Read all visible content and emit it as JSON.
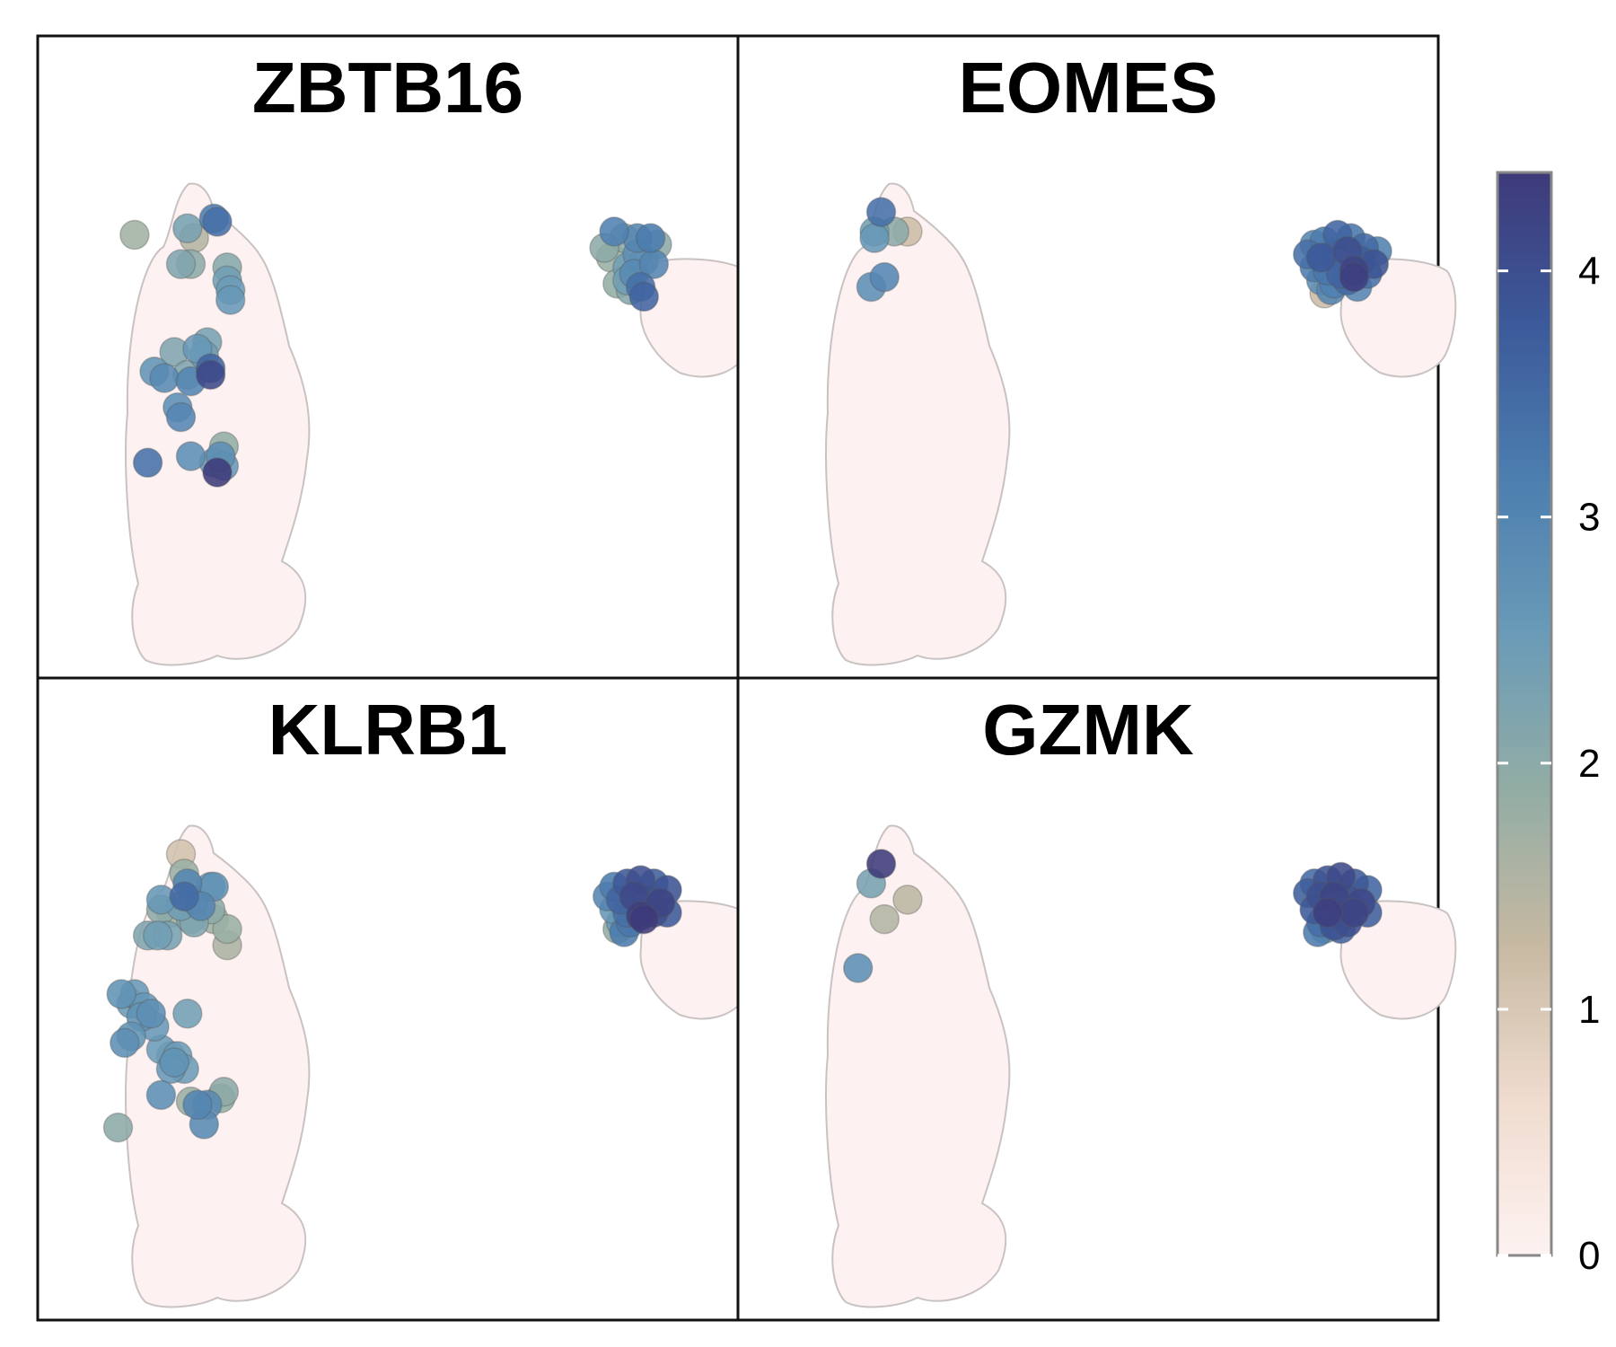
{
  "chart_data": {
    "type": "scatter",
    "description_type": "embedding feature plot, 2x2 facets",
    "grid": false,
    "legend": "right",
    "colorbar": {
      "range": [
        0,
        4.4
      ],
      "ticks": [
        0,
        1,
        2,
        3,
        4
      ],
      "tick_labels": [
        "0",
        "1",
        "2",
        "3",
        "4"
      ],
      "colors": [
        "#fdf2f1",
        "#f0dccf",
        "#c7b9a2",
        "#93ada4",
        "#6a9bb7",
        "#4d7fb0",
        "#3c5a9a",
        "#3e3a7a"
      ]
    },
    "background_color": "#fdf2f1",
    "axis_ranges": {
      "x": [
        -9,
        10
      ],
      "y": [
        -8,
        8
      ]
    },
    "panels": [
      {
        "title": "ZBTB16",
        "points": [
          {
            "x": -7.7,
            "y": 5.2,
            "v": 1.7
          },
          {
            "x": -6.1,
            "y": 5.4,
            "v": 2.3
          },
          {
            "x": -5.9,
            "y": 5.1,
            "v": 1.5
          },
          {
            "x": -5.3,
            "y": 5.7,
            "v": 3.2
          },
          {
            "x": -5.2,
            "y": 5.6,
            "v": 3.4
          },
          {
            "x": -6.3,
            "y": 4.3,
            "v": 2.2
          },
          {
            "x": -6.0,
            "y": 4.3,
            "v": 2.0
          },
          {
            "x": -4.9,
            "y": 4.2,
            "v": 2.1
          },
          {
            "x": -4.9,
            "y": 3.8,
            "v": 2.4
          },
          {
            "x": -4.8,
            "y": 3.5,
            "v": 2.5
          },
          {
            "x": -4.8,
            "y": 3.2,
            "v": 2.6
          },
          {
            "x": -6.5,
            "y": 1.6,
            "v": 2.2
          },
          {
            "x": -5.8,
            "y": 1.7,
            "v": 2.6
          },
          {
            "x": -5.6,
            "y": 1.5,
            "v": 2.4
          },
          {
            "x": -5.5,
            "y": 1.9,
            "v": 2.3
          },
          {
            "x": -7.1,
            "y": 1.0,
            "v": 2.7
          },
          {
            "x": -6.8,
            "y": 0.8,
            "v": 2.9
          },
          {
            "x": -6.1,
            "y": 0.9,
            "v": 2.2
          },
          {
            "x": -6.0,
            "y": 0.7,
            "v": 3.0
          },
          {
            "x": -5.4,
            "y": 1.1,
            "v": 3.6
          },
          {
            "x": -5.4,
            "y": 0.9,
            "v": 4.1
          },
          {
            "x": -6.4,
            "y": -0.1,
            "v": 2.8
          },
          {
            "x": -6.3,
            "y": -0.4,
            "v": 3.0
          },
          {
            "x": -7.3,
            "y": -1.8,
            "v": 3.4
          },
          {
            "x": -6.0,
            "y": -1.6,
            "v": 2.8
          },
          {
            "x": -5.0,
            "y": -1.3,
            "v": 1.9
          },
          {
            "x": -5.1,
            "y": -1.6,
            "v": 2.8
          },
          {
            "x": -5.3,
            "y": -1.8,
            "v": 2.5
          },
          {
            "x": -5.0,
            "y": -1.9,
            "v": 2.6
          },
          {
            "x": -5.2,
            "y": -2.1,
            "v": 4.4
          },
          {
            "x": 6.8,
            "y": 5.3,
            "v": 3.1
          },
          {
            "x": 7.1,
            "y": 5.1,
            "v": 2.0
          },
          {
            "x": 6.5,
            "y": 4.8,
            "v": 2.0
          },
          {
            "x": 6.7,
            "y": 4.5,
            "v": 1.8
          },
          {
            "x": 7.5,
            "y": 5.1,
            "v": 3.0
          },
          {
            "x": 7.9,
            "y": 5.1,
            "v": 3.2
          },
          {
            "x": 8.1,
            "y": 4.9,
            "v": 2.0
          },
          {
            "x": 7.5,
            "y": 4.6,
            "v": 2.8
          },
          {
            "x": 7.7,
            "y": 4.4,
            "v": 2.6
          },
          {
            "x": 7.2,
            "y": 4.2,
            "v": 2.4
          },
          {
            "x": 8.0,
            "y": 4.3,
            "v": 3.0
          },
          {
            "x": 7.4,
            "y": 4.0,
            "v": 2.9
          },
          {
            "x": 6.9,
            "y": 3.7,
            "v": 1.9
          },
          {
            "x": 7.2,
            "y": 3.8,
            "v": 2.4
          },
          {
            "x": 7.6,
            "y": 3.6,
            "v": 3.4
          },
          {
            "x": 7.7,
            "y": 3.3,
            "v": 3.6
          },
          {
            "x": 7.3,
            "y": 3.5,
            "v": 2.1
          }
        ]
      },
      {
        "title": "EOMES",
        "points": [
          {
            "x": -6.3,
            "y": 5.9,
            "v": 3.4
          },
          {
            "x": -6.5,
            "y": 5.3,
            "v": 2.4
          },
          {
            "x": -6.5,
            "y": 5.1,
            "v": 2.6
          },
          {
            "x": -5.9,
            "y": 5.3,
            "v": 2.0
          },
          {
            "x": -5.5,
            "y": 5.3,
            "v": 1.2
          },
          {
            "x": -6.6,
            "y": 3.6,
            "v": 2.8
          },
          {
            "x": -6.2,
            "y": 3.9,
            "v": 3.0
          },
          {
            "x": 6.8,
            "y": 4.9,
            "v": 3.0
          },
          {
            "x": 7.1,
            "y": 5.0,
            "v": 3.2
          },
          {
            "x": 7.5,
            "y": 5.2,
            "v": 3.6
          },
          {
            "x": 7.9,
            "y": 5.1,
            "v": 3.3
          },
          {
            "x": 8.3,
            "y": 4.8,
            "v": 3.5
          },
          {
            "x": 8.7,
            "y": 4.7,
            "v": 3.1
          },
          {
            "x": 6.6,
            "y": 4.6,
            "v": 3.4
          },
          {
            "x": 7.0,
            "y": 4.5,
            "v": 3.8
          },
          {
            "x": 7.4,
            "y": 4.6,
            "v": 3.5
          },
          {
            "x": 7.8,
            "y": 4.7,
            "v": 4.0
          },
          {
            "x": 8.2,
            "y": 4.4,
            "v": 3.7
          },
          {
            "x": 8.6,
            "y": 4.3,
            "v": 3.9
          },
          {
            "x": 6.8,
            "y": 4.2,
            "v": 3.2
          },
          {
            "x": 7.2,
            "y": 4.1,
            "v": 3.3
          },
          {
            "x": 7.6,
            "y": 4.0,
            "v": 3.6
          },
          {
            "x": 8.0,
            "y": 4.1,
            "v": 4.2
          },
          {
            "x": 8.4,
            "y": 4.0,
            "v": 3.4
          },
          {
            "x": 7.0,
            "y": 3.8,
            "v": 2.8
          },
          {
            "x": 7.4,
            "y": 3.7,
            "v": 3.1
          },
          {
            "x": 7.8,
            "y": 3.8,
            "v": 3.5
          },
          {
            "x": 8.1,
            "y": 3.6,
            "v": 3.0
          },
          {
            "x": 8.0,
            "y": 3.9,
            "v": 4.3
          },
          {
            "x": 7.1,
            "y": 3.4,
            "v": 1.2
          },
          {
            "x": 7.3,
            "y": 3.5,
            "v": 3.0
          }
        ]
      },
      {
        "title": "KLRB1",
        "points": [
          {
            "x": -6.3,
            "y": 5.9,
            "v": 1.1
          },
          {
            "x": -6.2,
            "y": 5.3,
            "v": 1.8
          },
          {
            "x": -6.1,
            "y": 5.0,
            "v": 3.0
          },
          {
            "x": -5.4,
            "y": 4.9,
            "v": 2.6
          },
          {
            "x": -5.3,
            "y": 4.9,
            "v": 2.7
          },
          {
            "x": -6.9,
            "y": 4.5,
            "v": 2.6
          },
          {
            "x": -6.2,
            "y": 4.6,
            "v": 3.5
          },
          {
            "x": -6.9,
            "y": 4.2,
            "v": 2.0
          },
          {
            "x": -6.6,
            "y": 4.1,
            "v": 1.7
          },
          {
            "x": -6.3,
            "y": 4.3,
            "v": 2.4
          },
          {
            "x": -5.9,
            "y": 4.5,
            "v": 2.5
          },
          {
            "x": -5.7,
            "y": 4.3,
            "v": 3.0
          },
          {
            "x": -6.0,
            "y": 3.9,
            "v": 2.1
          },
          {
            "x": -5.3,
            "y": 3.9,
            "v": 1.7
          },
          {
            "x": -5.9,
            "y": 3.8,
            "v": 2.2
          },
          {
            "x": -5.4,
            "y": 4.2,
            "v": 2.0
          },
          {
            "x": -7.3,
            "y": 3.4,
            "v": 2.2
          },
          {
            "x": -7.0,
            "y": 3.4,
            "v": 2.4
          },
          {
            "x": -6.7,
            "y": 3.4,
            "v": 2.3
          },
          {
            "x": -4.9,
            "y": 3.6,
            "v": 1.8
          },
          {
            "x": -4.9,
            "y": 3.1,
            "v": 1.6
          },
          {
            "x": -8.1,
            "y": 1.6,
            "v": 2.7
          },
          {
            "x": -7.7,
            "y": 1.6,
            "v": 2.6
          },
          {
            "x": -7.8,
            "y": 1.3,
            "v": 2.5
          },
          {
            "x": -7.4,
            "y": 1.2,
            "v": 2.6
          },
          {
            "x": -7.5,
            "y": 0.9,
            "v": 2.7
          },
          {
            "x": -7.2,
            "y": 1.0,
            "v": 2.8
          },
          {
            "x": -6.1,
            "y": 1.0,
            "v": 2.4
          },
          {
            "x": -7.1,
            "y": 0.6,
            "v": 2.6
          },
          {
            "x": -7.8,
            "y": 0.3,
            "v": 2.7
          },
          {
            "x": -8.0,
            "y": 0.1,
            "v": 2.8
          },
          {
            "x": -6.9,
            "y": -0.1,
            "v": 2.5
          },
          {
            "x": -6.6,
            "y": -0.3,
            "v": 2.4
          },
          {
            "x": -6.4,
            "y": -0.3,
            "v": 2.5
          },
          {
            "x": -6.6,
            "y": -0.7,
            "v": 2.6
          },
          {
            "x": -6.2,
            "y": -0.7,
            "v": 2.5
          },
          {
            "x": -6.5,
            "y": -0.5,
            "v": 2.7
          },
          {
            "x": -6.9,
            "y": -1.5,
            "v": 2.8
          },
          {
            "x": -6.0,
            "y": -1.7,
            "v": 1.8
          },
          {
            "x": -5.8,
            "y": -1.8,
            "v": 3.0
          },
          {
            "x": -5.5,
            "y": -1.8,
            "v": 2.9
          },
          {
            "x": -5.1,
            "y": -1.6,
            "v": 1.9
          },
          {
            "x": -5.0,
            "y": -1.4,
            "v": 2.0
          },
          {
            "x": -8.2,
            "y": -2.5,
            "v": 2.0
          },
          {
            "x": -5.6,
            "y": -2.4,
            "v": 2.9
          },
          {
            "x": 6.8,
            "y": 4.9,
            "v": 3.2
          },
          {
            "x": 7.2,
            "y": 5.0,
            "v": 3.8
          },
          {
            "x": 7.6,
            "y": 5.1,
            "v": 4.0
          },
          {
            "x": 8.0,
            "y": 5.0,
            "v": 3.7
          },
          {
            "x": 8.4,
            "y": 4.8,
            "v": 3.9
          },
          {
            "x": 6.6,
            "y": 4.6,
            "v": 3.0
          },
          {
            "x": 7.0,
            "y": 4.5,
            "v": 3.6
          },
          {
            "x": 7.4,
            "y": 4.6,
            "v": 4.1
          },
          {
            "x": 7.8,
            "y": 4.5,
            "v": 3.9
          },
          {
            "x": 8.2,
            "y": 4.4,
            "v": 4.2
          },
          {
            "x": 6.8,
            "y": 4.2,
            "v": 2.6
          },
          {
            "x": 7.2,
            "y": 4.1,
            "v": 3.4
          },
          {
            "x": 7.6,
            "y": 4.0,
            "v": 4.3
          },
          {
            "x": 8.0,
            "y": 4.1,
            "v": 4.0
          },
          {
            "x": 8.4,
            "y": 4.1,
            "v": 3.8
          },
          {
            "x": 7.0,
            "y": 3.8,
            "v": 2.5
          },
          {
            "x": 7.3,
            "y": 3.8,
            "v": 3.3
          },
          {
            "x": 7.7,
            "y": 3.9,
            "v": 4.4
          },
          {
            "x": 6.9,
            "y": 3.6,
            "v": 1.9
          },
          {
            "x": 7.1,
            "y": 3.5,
            "v": 3.2
          }
        ]
      },
      {
        "title": "GZMK",
        "points": [
          {
            "x": -6.3,
            "y": 5.6,
            "v": 4.4
          },
          {
            "x": -6.6,
            "y": 5.0,
            "v": 2.3
          },
          {
            "x": -5.5,
            "y": 4.5,
            "v": 1.4
          },
          {
            "x": -6.2,
            "y": 3.9,
            "v": 1.5
          },
          {
            "x": -7.0,
            "y": 2.4,
            "v": 2.8
          },
          {
            "x": 6.8,
            "y": 5.0,
            "v": 3.5
          },
          {
            "x": 7.2,
            "y": 5.1,
            "v": 3.9
          },
          {
            "x": 7.6,
            "y": 5.2,
            "v": 4.1
          },
          {
            "x": 8.0,
            "y": 5.0,
            "v": 3.8
          },
          {
            "x": 8.4,
            "y": 4.8,
            "v": 3.6
          },
          {
            "x": 6.6,
            "y": 4.7,
            "v": 3.7
          },
          {
            "x": 7.0,
            "y": 4.6,
            "v": 4.0
          },
          {
            "x": 7.4,
            "y": 4.6,
            "v": 4.2
          },
          {
            "x": 7.8,
            "y": 4.5,
            "v": 3.9
          },
          {
            "x": 8.2,
            "y": 4.4,
            "v": 4.1
          },
          {
            "x": 6.8,
            "y": 4.2,
            "v": 3.8
          },
          {
            "x": 7.2,
            "y": 4.1,
            "v": 4.3
          },
          {
            "x": 7.6,
            "y": 4.0,
            "v": 3.9
          },
          {
            "x": 8.0,
            "y": 4.1,
            "v": 4.2
          },
          {
            "x": 8.4,
            "y": 4.1,
            "v": 3.7
          },
          {
            "x": 7.0,
            "y": 3.8,
            "v": 3.4
          },
          {
            "x": 7.4,
            "y": 3.7,
            "v": 3.9
          },
          {
            "x": 7.8,
            "y": 3.8,
            "v": 4.0
          },
          {
            "x": 6.9,
            "y": 3.5,
            "v": 3.2
          },
          {
            "x": 7.1,
            "y": 3.6,
            "v": 2.4
          },
          {
            "x": 7.6,
            "y": 3.6,
            "v": 3.6
          }
        ]
      }
    ]
  }
}
